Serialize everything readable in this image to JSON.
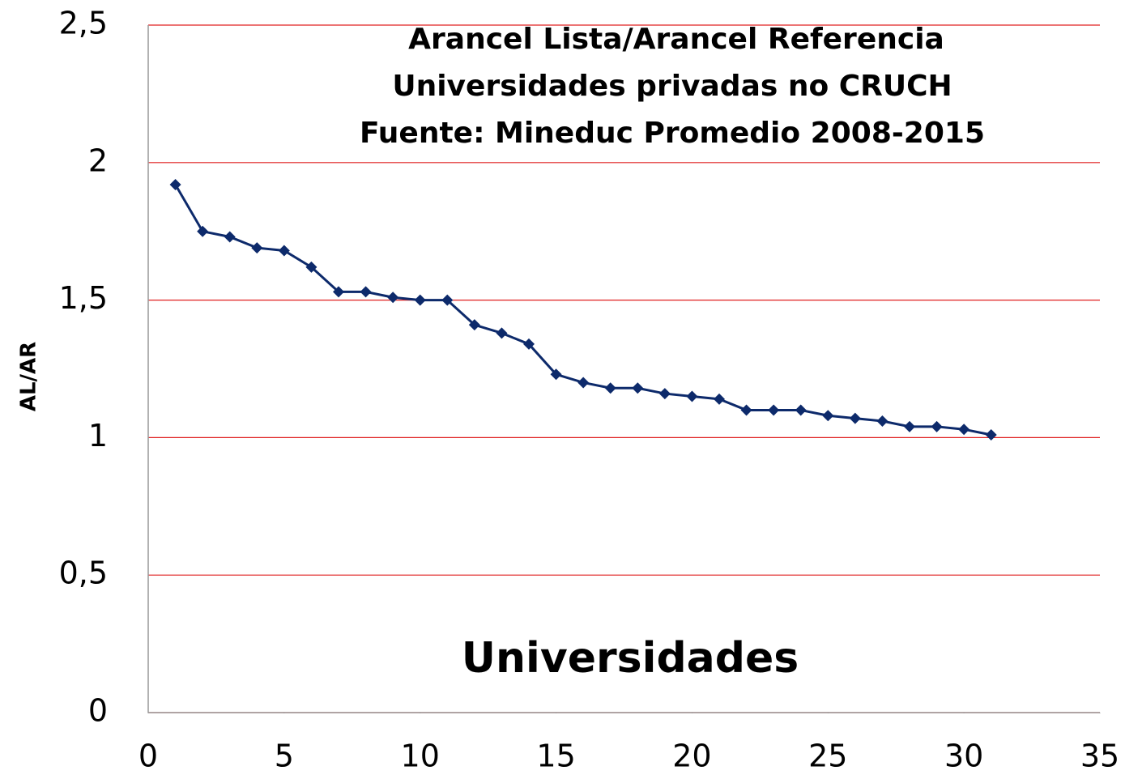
{
  "chart_data": {
    "type": "line",
    "title": [
      "Arancel Lista/Arancel Referencia",
      "Universidades privadas no CRUCH",
      "Fuente: Mineduc Promedio 2008-2015"
    ],
    "xlabel": "Universidades",
    "ylabel": "AL/AR",
    "x": [
      1,
      2,
      3,
      4,
      5,
      6,
      7,
      8,
      9,
      10,
      11,
      12,
      13,
      14,
      15,
      16,
      17,
      18,
      19,
      20,
      21,
      22,
      23,
      24,
      25,
      26,
      27,
      28,
      29,
      30,
      31
    ],
    "series": [
      {
        "name": "AL/AR",
        "color": "#0d2a6b",
        "values": [
          1.92,
          1.75,
          1.73,
          1.69,
          1.68,
          1.62,
          1.53,
          1.53,
          1.51,
          1.5,
          1.5,
          1.41,
          1.38,
          1.34,
          1.23,
          1.2,
          1.18,
          1.18,
          1.16,
          1.15,
          1.14,
          1.1,
          1.1,
          1.1,
          1.08,
          1.07,
          1.06,
          1.04,
          1.04,
          1.03,
          1.01
        ]
      }
    ],
    "xlim": [
      0,
      35
    ],
    "xticks": [
      0,
      5,
      10,
      15,
      20,
      25,
      30,
      35
    ],
    "ylim": [
      0,
      2.5
    ],
    "yticks": [
      0,
      {
        "value": 0.5,
        "label": "0,5"
      },
      1,
      {
        "value": 1.5,
        "label": "1,5"
      },
      2,
      {
        "value": 2.5,
        "label": "2,5"
      }
    ],
    "grid": true,
    "grid_color": "#e02020"
  }
}
